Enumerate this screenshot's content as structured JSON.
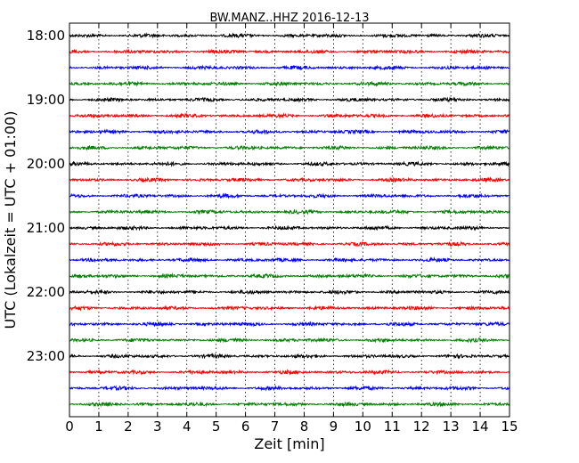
{
  "chart_data": {
    "type": "line",
    "title": "BW.MANZ..HHZ 2016-12-13",
    "xlabel": "Zeit  [min]",
    "ylabel": "UTC (Lokalzeit = UTC + 01:00)",
    "xlim": [
      0,
      15
    ],
    "x_ticks": [
      "0",
      "1",
      "2",
      "3",
      "4",
      "5",
      "6",
      "7",
      "8",
      "9",
      "10",
      "11",
      "12",
      "13",
      "14",
      "15"
    ],
    "y_ticks": [
      "18:00",
      "19:00",
      "20:00",
      "21:00",
      "22:00",
      "23:00"
    ],
    "grid": "vertical dotted lines at each minute",
    "series_colors": [
      "#000000",
      "#ff0000",
      "#0000ff",
      "#007f00"
    ],
    "series": [
      {
        "start": "18:00",
        "color": "#000000"
      },
      {
        "start": "18:15",
        "color": "#ff0000"
      },
      {
        "start": "18:30",
        "color": "#0000ff"
      },
      {
        "start": "18:45",
        "color": "#007f00"
      },
      {
        "start": "19:00",
        "color": "#000000"
      },
      {
        "start": "19:15",
        "color": "#ff0000"
      },
      {
        "start": "19:30",
        "color": "#0000ff"
      },
      {
        "start": "19:45",
        "color": "#007f00"
      },
      {
        "start": "20:00",
        "color": "#000000"
      },
      {
        "start": "20:15",
        "color": "#ff0000"
      },
      {
        "start": "20:30",
        "color": "#0000ff"
      },
      {
        "start": "20:45",
        "color": "#007f00"
      },
      {
        "start": "21:00",
        "color": "#000000"
      },
      {
        "start": "21:15",
        "color": "#ff0000"
      },
      {
        "start": "21:30",
        "color": "#0000ff"
      },
      {
        "start": "21:45",
        "color": "#007f00"
      },
      {
        "start": "22:00",
        "color": "#000000"
      },
      {
        "start": "22:15",
        "color": "#ff0000"
      },
      {
        "start": "22:30",
        "color": "#0000ff"
      },
      {
        "start": "22:45",
        "color": "#007f00"
      },
      {
        "start": "23:00",
        "color": "#000000"
      },
      {
        "start": "23:15",
        "color": "#ff0000"
      },
      {
        "start": "23:30",
        "color": "#0000ff"
      },
      {
        "start": "23:45",
        "color": "#007f00"
      }
    ]
  }
}
